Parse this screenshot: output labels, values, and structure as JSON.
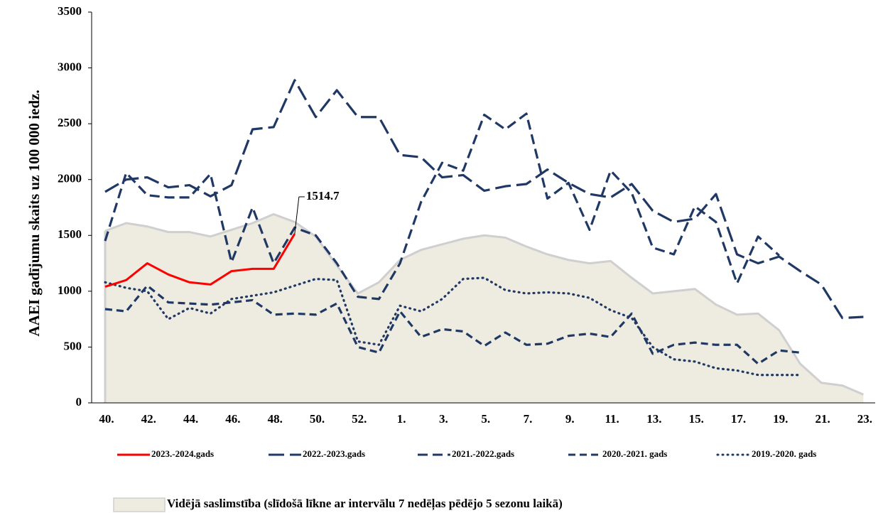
{
  "chart_data": {
    "type": "line",
    "ylabel": "AAEI gadījumu skaits uz 100 000 iedz.",
    "categories": [
      "40.",
      null,
      "42.",
      null,
      "44.",
      null,
      "46.",
      null,
      "48.",
      null,
      "50.",
      null,
      "52.",
      null,
      "1.",
      null,
      "3.",
      null,
      "5.",
      null,
      "7.",
      null,
      "9.",
      null,
      "11.",
      null,
      "13.",
      null,
      "15.",
      null,
      "17.",
      null,
      "19.",
      null,
      "21.",
      null,
      "23."
    ],
    "ylim": [
      0,
      3500
    ],
    "yticks": [
      0,
      500,
      1000,
      1500,
      2000,
      2500,
      3000,
      3500
    ],
    "grid": false,
    "legend": "bottom",
    "area": {
      "name": "Vidējā saslimstība (slīdošā līkne ar intervālu 7 nedēļas pēdējo 5 sezonu laikā)",
      "color": "#eeebe0",
      "edge": "#cfcfcf",
      "values": [
        1540,
        1610,
        1580,
        1530,
        1530,
        1490,
        1550,
        1610,
        1690,
        1620,
        1490,
        1230,
        980,
        1080,
        1280,
        1370,
        1420,
        1470,
        1500,
        1480,
        1400,
        1330,
        1280,
        1250,
        1270,
        1120,
        980,
        1000,
        1020,
        880,
        790,
        800,
        650,
        350,
        180,
        155,
        75
      ]
    },
    "series": [
      {
        "name": "2023.-2024.gads",
        "color": "#ff0000",
        "dash": "none",
        "labeled_points": [
          9
        ],
        "values": [
          1040,
          1100,
          1250,
          1150,
          1080,
          1060,
          1180,
          1200,
          1200,
          1514.7,
          null,
          null,
          null,
          null,
          null,
          null,
          null,
          null,
          null,
          null,
          null,
          null,
          null,
          null,
          null,
          null,
          null,
          null,
          null,
          null,
          null,
          null,
          null,
          null,
          null,
          null,
          null
        ]
      },
      {
        "name": "2022.-2023.gads",
        "color": "#203864",
        "dash": "22,8",
        "values": [
          1890,
          2000,
          2020,
          1930,
          1950,
          1850,
          1950,
          2450,
          2470,
          2890,
          2560,
          2800,
          2560,
          2560,
          2220,
          2200,
          2020,
          2040,
          1900,
          1940,
          1960,
          2090,
          1970,
          1870,
          1840,
          1960,
          1720,
          1620,
          1650,
          1870,
          1330,
          1250,
          1310,
          1180,
          1060,
          760,
          770
        ]
      },
      {
        "name": "2021.-2022.gads",
        "color": "#203864",
        "dash": "14,7",
        "values": [
          1450,
          2060,
          1860,
          1840,
          1840,
          2050,
          1260,
          1750,
          1250,
          1570,
          1500,
          1250,
          950,
          930,
          1250,
          1800,
          2150,
          2080,
          2580,
          2450,
          2590,
          1830,
          1970,
          1550,
          2080,
          1880,
          1390,
          1330,
          1760,
          1620,
          1070,
          1490,
          1320,
          null,
          null,
          null,
          null
        ]
      },
      {
        "name": "2020.-2021. gads",
        "color": "#203864",
        "dash": "10,6",
        "values": [
          840,
          820,
          1050,
          900,
          890,
          880,
          900,
          920,
          790,
          800,
          790,
          890,
          500,
          450,
          820,
          590,
          660,
          640,
          510,
          630,
          520,
          530,
          600,
          620,
          590,
          800,
          440,
          520,
          540,
          520,
          520,
          350,
          470,
          450,
          null,
          null,
          null
        ]
      },
      {
        "name": "2019.-2020. gads",
        "color": "#203864",
        "dash": "1,6",
        "values": [
          1080,
          1030,
          1000,
          750,
          850,
          800,
          930,
          960,
          990,
          1050,
          1110,
          1100,
          550,
          520,
          870,
          820,
          930,
          1110,
          1120,
          1010,
          980,
          990,
          980,
          940,
          830,
          760,
          500,
          390,
          370,
          310,
          290,
          250,
          250,
          250,
          null,
          null,
          null
        ]
      }
    ]
  }
}
